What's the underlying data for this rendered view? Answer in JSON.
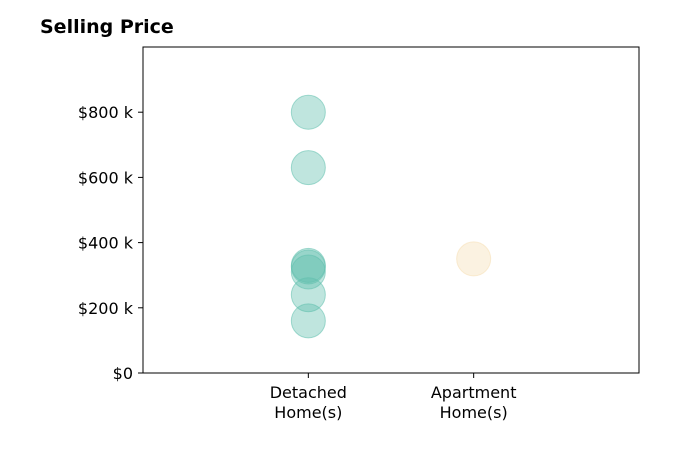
{
  "chart_data": {
    "type": "scatter",
    "title": "Selling Price",
    "categories": [
      "Detached\nHome(s)",
      "Apartment\nHome(s)"
    ],
    "series": [
      {
        "category_index": 0,
        "color": "#5fbfad",
        "values": [
          800000,
          630000,
          330000,
          325000,
          310000,
          240000,
          160000
        ]
      },
      {
        "category_index": 1,
        "color": "#f5deb3",
        "values": [
          350000
        ]
      }
    ],
    "y_ticks": [
      {
        "value": 0,
        "label": "$0"
      },
      {
        "value": 200000,
        "label": "$200 k"
      },
      {
        "value": 400000,
        "label": "$400 k"
      },
      {
        "value": 600000,
        "label": "$600 k"
      },
      {
        "value": 800000,
        "label": "$800 k"
      }
    ],
    "ylim": [
      0,
      1000000
    ],
    "xlim": [
      0,
      3
    ],
    "grid": false,
    "legend": "none"
  }
}
